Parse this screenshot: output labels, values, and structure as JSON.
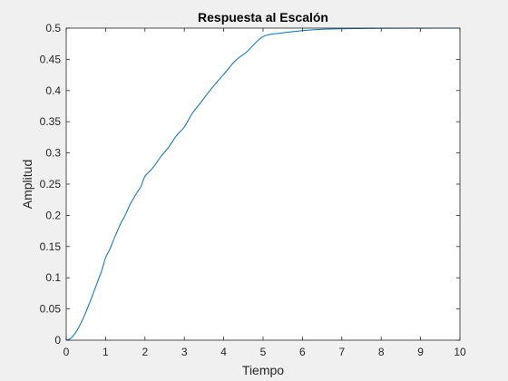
{
  "chart_data": {
    "type": "line",
    "title": "Respuesta al Escalón",
    "xlabel": "Tiempo",
    "ylabel": "Amplitud",
    "xlim": [
      0,
      10
    ],
    "ylim": [
      0,
      0.5
    ],
    "xticks": [
      0,
      1,
      2,
      3,
      4,
      5,
      6,
      7,
      8,
      9,
      10
    ],
    "xtick_labels": [
      "0",
      "1",
      "2",
      "3",
      "4",
      "5",
      "6",
      "7",
      "8",
      "9",
      "10"
    ],
    "yticks": [
      0,
      0.05,
      0.1,
      0.15,
      0.2,
      0.25,
      0.3,
      0.35,
      0.4,
      0.45,
      0.5
    ],
    "ytick_labels": [
      "0",
      "0.05",
      "0.1",
      "0.15",
      "0.2",
      "0.25",
      "0.3",
      "0.35",
      "0.4",
      "0.45",
      "0.5"
    ],
    "grid": false,
    "line_color": "#0072bd",
    "series": [
      {
        "x": [
          0,
          0.1,
          0.2,
          0.3,
          0.4,
          0.5,
          0.6,
          0.7,
          0.8,
          0.9,
          1.0,
          1.1,
          1.2,
          1.3,
          1.4,
          1.5,
          1.6,
          1.7,
          1.8,
          1.9,
          2.0,
          2.2,
          2.4,
          2.6,
          2.8,
          3.0,
          3.2,
          3.4,
          3.6,
          3.8,
          4.0,
          4.3,
          4.6,
          5.0,
          5.5,
          6.0,
          6.5,
          7.0,
          8.0,
          9.0,
          10.0
        ],
        "y": [
          0,
          0.0023,
          0.0088,
          0.0185,
          0.0308,
          0.0451,
          0.0608,
          0.0773,
          0.0942,
          0.1113,
          0.1321,
          0.1445,
          0.1601,
          0.175,
          0.1891,
          0.2004,
          0.2148,
          0.2262,
          0.2368,
          0.2465,
          0.2625,
          0.276,
          0.2938,
          0.3091,
          0.3276,
          0.3416,
          0.3632,
          0.3793,
          0.396,
          0.4115,
          0.4259,
          0.448,
          0.4628,
          0.4865,
          0.4923,
          0.496,
          0.4982,
          0.499,
          0.4996,
          0.4999,
          0.5
        ]
      }
    ]
  }
}
